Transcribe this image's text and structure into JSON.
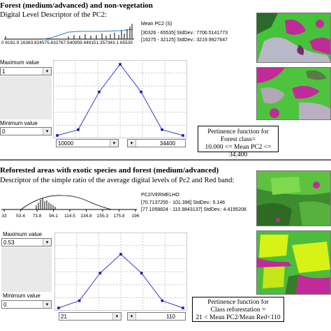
{
  "section1": {
    "title": "Forest (medium/advanced) and non-vegetation",
    "subtitle": "Digital Level Descriptor of the PC2:",
    "hist_ticks": "0  8191.9 16383.824575.632767.540959.449151.357343.1 65535",
    "stats": {
      "name": "Mean PC2 (S)",
      "line1": "[30326 - 65535] StdDev.: 7706.5141773",
      "line2": "[19275 - 32125] StdDev.: 3219.9927647"
    },
    "max_label": "Maximum value",
    "max_value": "1",
    "min_label": "Minimum value",
    "min_value": "0",
    "low_value": "10000",
    "high_value": "34400",
    "function_box": [
      "Pertinence function for",
      "Forest class=",
      "10.000 <= Mean PC2 <= 34.400"
    ],
    "curve_y": [
      0,
      0.08,
      0.6,
      0.98,
      0.6,
      0.08,
      0
    ]
  },
  "section2": {
    "title": "Reforested areas with exotic species and forest (medium/advanced)",
    "subtitle": "Descriptor of the simple ratio of the average digital levels of Pc2 and Red band:",
    "hist_ticks": [
      "33",
      "53.4",
      "73.8",
      "94.1",
      "114.5",
      "134.8",
      "155.3",
      "175.8",
      "196"
    ],
    "stats": {
      "name": "PC2/VERMELHO",
      "line1": "[70.7137255 - 101.396] StdDev.: 5.146",
      "line2": "[77.1058824 - 110.9843137] StdDev.: 4.4195208"
    },
    "max_label": "Maximum value",
    "max_value": "0.53",
    "min_label": "Minimum value",
    "min_value": "0",
    "low_value": "21",
    "high_value": "110",
    "function_box": [
      "Pertinence function for",
      "Class reforestation =",
      "21 < Mean PC2/Mean Red<110"
    ],
    "curve_y": [
      0,
      0.1,
      0.48,
      0.74,
      0.48,
      0.1,
      0
    ]
  },
  "icons": {
    "dropdown": "chevron-down-icon"
  },
  "colors": {
    "curve": "#3b3bcf",
    "green_area": "#6fd84a",
    "magenta": "#c0239a",
    "yellow": "#d7f217"
  }
}
